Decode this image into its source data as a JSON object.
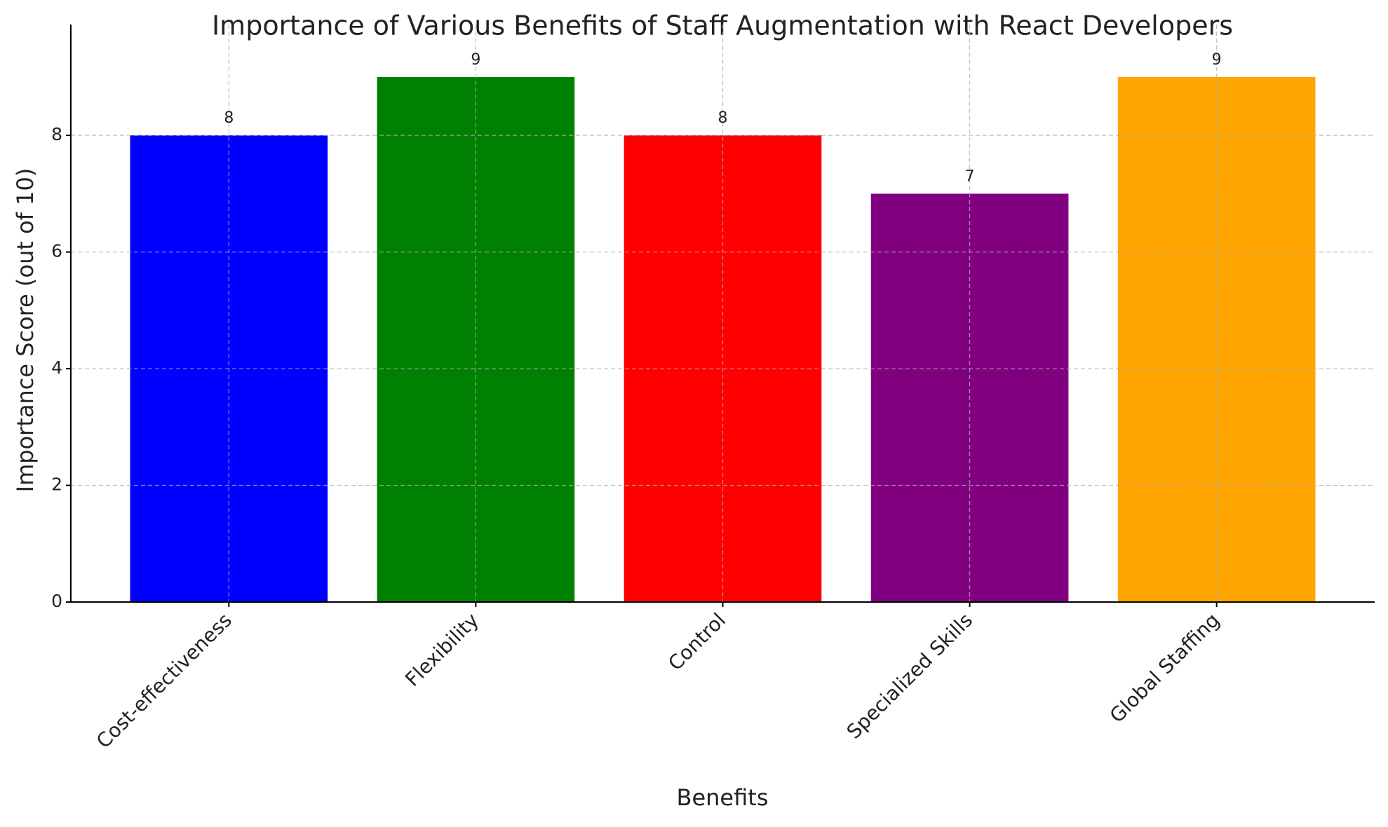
{
  "chart_data": {
    "type": "bar",
    "title": "Importance of Various Benefits of Staff Augmentation with React Developers",
    "xlabel": "Benefits",
    "ylabel": "Importance Score (out of 10)",
    "categories": [
      "Cost-effectiveness",
      "Flexibility",
      "Control",
      "Specialized Skills",
      "Global Staffing"
    ],
    "values": [
      8,
      9,
      8,
      7,
      9
    ],
    "colors": [
      "#0000ff",
      "#008000",
      "#ff0000",
      "#800080",
      "#ffa500"
    ],
    "ylim": [
      0,
      9.9
    ],
    "yticks": [
      0,
      2,
      4,
      6,
      8
    ],
    "grid": true
  }
}
